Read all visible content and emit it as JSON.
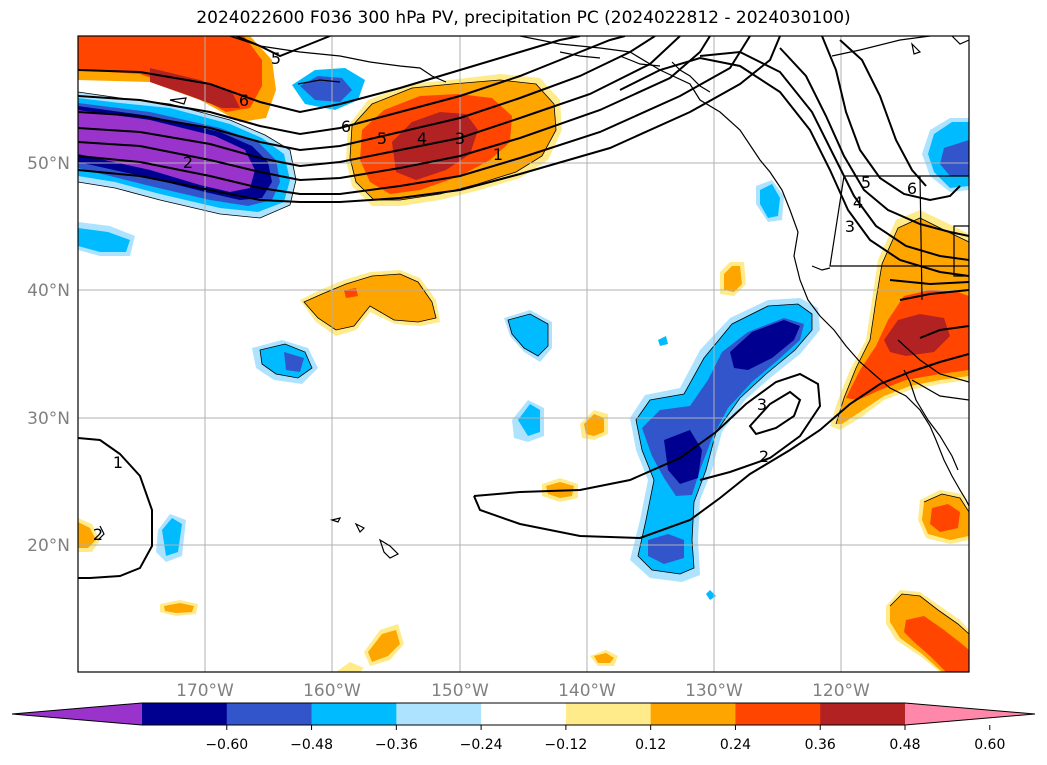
{
  "title": "2024022600 F036 300 hPa PV, precipitation PC (2024022812 - 2024030100)",
  "map": {
    "lon_range": [
      -180,
      -110
    ],
    "lat_range": [
      10,
      60
    ],
    "gridlines": true,
    "lon_labels": [
      "170°W",
      "160°W",
      "150°W",
      "140°W",
      "130°W",
      "120°W"
    ],
    "lat_labels": [
      "50°N",
      "40°N",
      "30°N",
      "20°N"
    ],
    "pv_contour_labels": [
      "5",
      "6",
      "6",
      "5",
      "4",
      "3",
      "1",
      "2",
      "5",
      "4",
      "3",
      "6",
      "1",
      "3",
      "2",
      "2"
    ]
  },
  "colorbar": {
    "ticks": [
      "−0.60",
      "−0.48",
      "−0.36",
      "−0.24",
      "−0.12",
      "0.12",
      "0.24",
      "0.36",
      "0.48",
      "0.60"
    ],
    "colors": [
      "#9933cc",
      "#000090",
      "#3355cc",
      "#00bbff",
      "#aee3ff",
      "#ffffff",
      "#ffeb8a",
      "#ffa500",
      "#ff4500",
      "#b22222",
      "#ff88aa"
    ],
    "extend": "both"
  }
}
